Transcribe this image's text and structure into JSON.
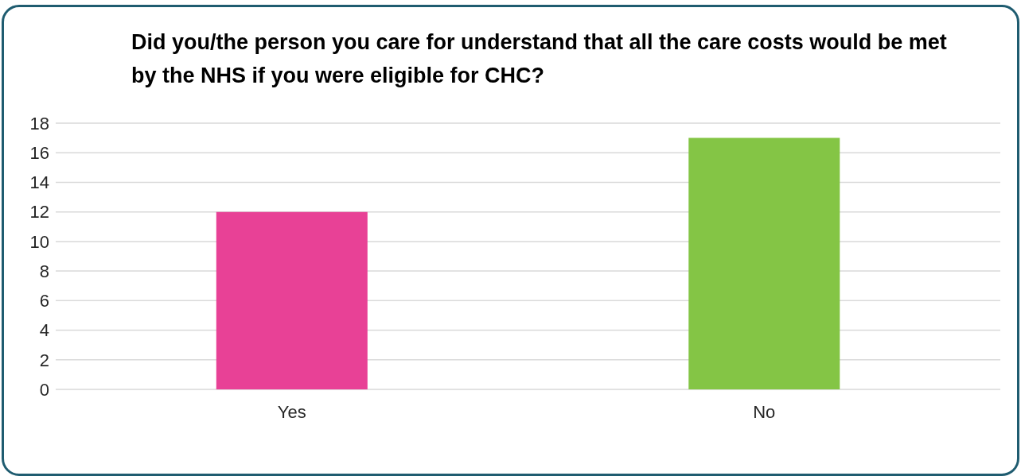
{
  "chart_data": {
    "type": "bar",
    "title": "Did you/the person you care for understand that all the care costs would be met by the NHS if you were eligible for CHC?",
    "categories": [
      "Yes",
      "No"
    ],
    "values": [
      12,
      17
    ],
    "colors": [
      "#e84196",
      "#84c545"
    ],
    "ylim": [
      0,
      18
    ],
    "yticks": [
      0,
      2,
      4,
      6,
      8,
      10,
      12,
      14,
      16,
      18
    ],
    "grid": "y"
  }
}
